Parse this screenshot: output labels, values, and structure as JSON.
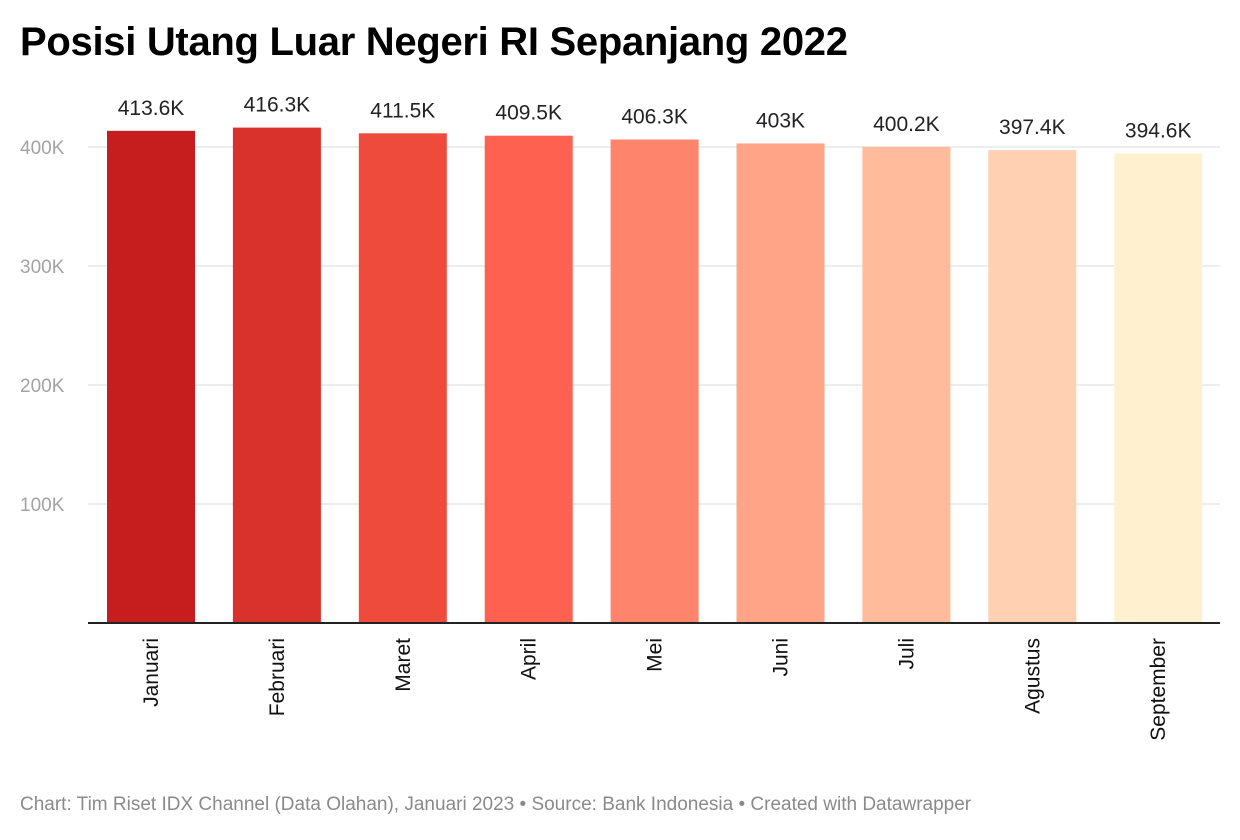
{
  "chart_data": {
    "type": "bar",
    "title": "Posisi Utang Luar Negeri RI Sepanjang 2022",
    "categories": [
      "Januari",
      "Februari",
      "Maret",
      "April",
      "Mei",
      "Juni",
      "Juli",
      "Agustus",
      "September"
    ],
    "values": [
      413.6,
      416.3,
      411.5,
      409.5,
      406.3,
      403,
      400.2,
      397.4,
      394.6
    ],
    "value_labels": [
      "413.6K",
      "416.3K",
      "411.5K",
      "409.5K",
      "406.3K",
      "403K",
      "400.2K",
      "397.4K",
      "394.6K"
    ],
    "colors": [
      "#c61d1f",
      "#d9322d",
      "#ee4b3d",
      "#ff6150",
      "#ff846c",
      "#ffa486",
      "#ffbb9b",
      "#ffd0b1",
      "#fff0cf"
    ],
    "y_ticks": [
      100,
      200,
      300,
      400
    ],
    "y_tick_labels": [
      "100K",
      "200K",
      "300K",
      "400K"
    ],
    "ylim": [
      0,
      400
    ],
    "xlabel": "",
    "ylabel": "",
    "grid": true,
    "legend": "none"
  },
  "footer": {
    "text": "Chart: Tim Riset IDX Channel (Data Olahan), Januari 2023 • Source: Bank Indonesia • Created with Datawrapper"
  }
}
